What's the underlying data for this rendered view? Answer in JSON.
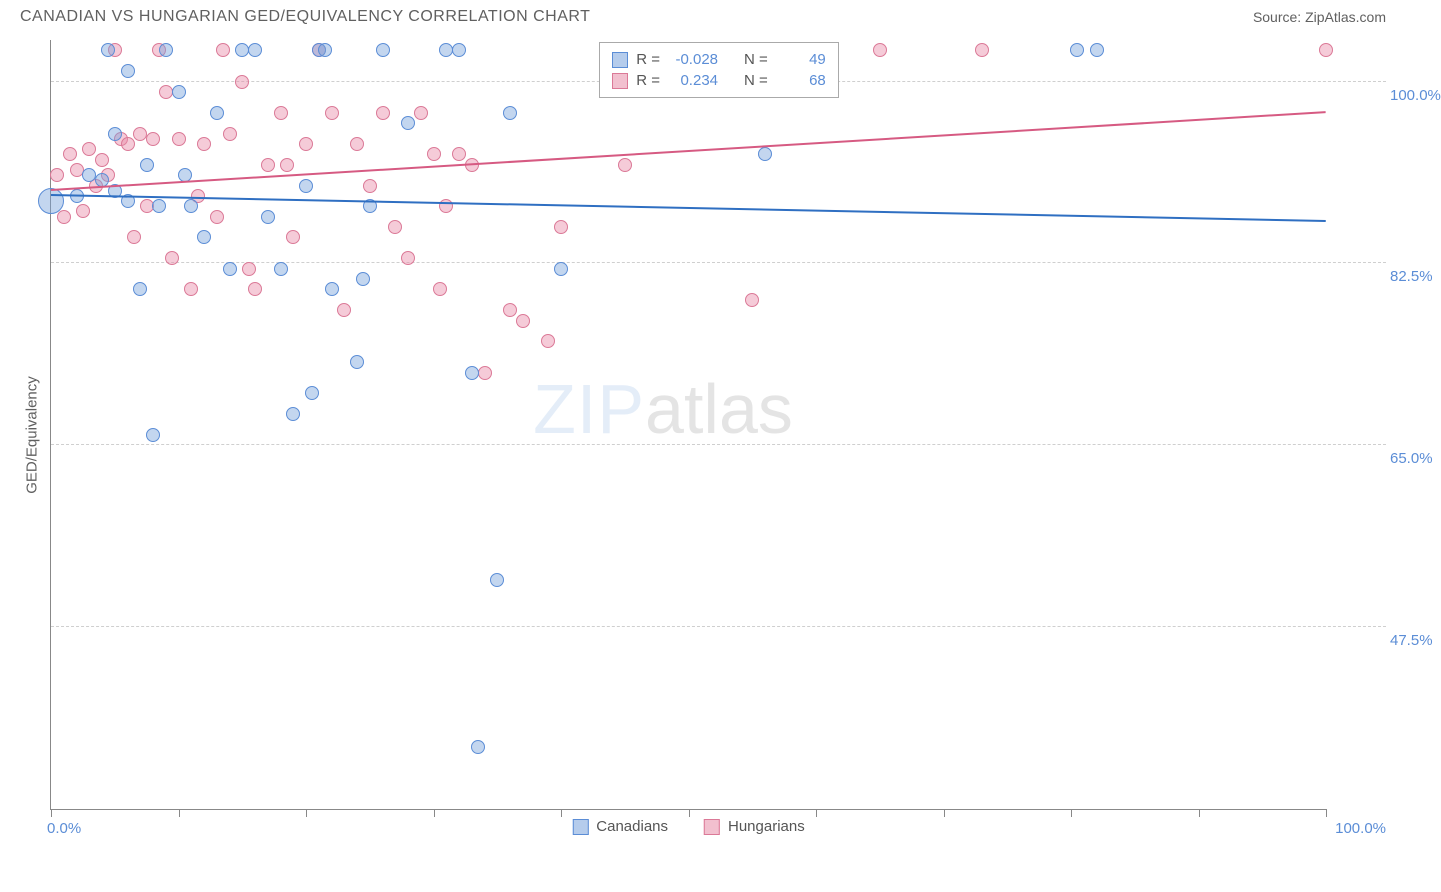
{
  "header": {
    "title": "CANADIAN VS HUNGARIAN GED/EQUIVALENCY CORRELATION CHART",
    "source": "Source: ZipAtlas.com"
  },
  "axes": {
    "y_label": "GED/Equivalency",
    "x_min": 0,
    "x_max": 100,
    "y_min": 30,
    "y_max": 104,
    "x_min_label": "0.0%",
    "x_max_label": "100.0%",
    "y_ticks": [
      {
        "value": 47.5,
        "label": "47.5%"
      },
      {
        "value": 65.0,
        "label": "65.0%"
      },
      {
        "value": 82.5,
        "label": "82.5%"
      },
      {
        "value": 100.0,
        "label": "100.0%"
      }
    ],
    "x_tick_positions": [
      0,
      10,
      20,
      30,
      40,
      50,
      60,
      70,
      80,
      90,
      100
    ],
    "grid_color": "#cfcfcf",
    "tick_label_color": "#5b8dd6",
    "axis_label_color": "#606060"
  },
  "series": {
    "canadians": {
      "label": "Canadians",
      "color_fill": "rgba(121,163,220,0.45)",
      "color_stroke": "#5b8dd6",
      "R": "-0.028",
      "N": "49",
      "regression": {
        "x1": 0,
        "y1": 89.0,
        "x2": 100,
        "y2": 86.5,
        "color": "#2f6fc2",
        "width": 2
      },
      "marker_size": 14,
      "points": [
        {
          "x": 0.0,
          "y": 88.5,
          "size": 26
        },
        {
          "x": 2.0,
          "y": 89.0
        },
        {
          "x": 3.0,
          "y": 91.0
        },
        {
          "x": 4.0,
          "y": 90.5
        },
        {
          "x": 4.5,
          "y": 103.0
        },
        {
          "x": 5.0,
          "y": 89.5
        },
        {
          "x": 5.0,
          "y": 95.0
        },
        {
          "x": 6.0,
          "y": 88.5
        },
        {
          "x": 6.0,
          "y": 101.0
        },
        {
          "x": 7.0,
          "y": 80.0
        },
        {
          "x": 7.5,
          "y": 92.0
        },
        {
          "x": 8.0,
          "y": 66.0
        },
        {
          "x": 8.5,
          "y": 88.0
        },
        {
          "x": 9.0,
          "y": 103.0
        },
        {
          "x": 10.0,
          "y": 99.0
        },
        {
          "x": 10.5,
          "y": 91.0
        },
        {
          "x": 11.0,
          "y": 88.0
        },
        {
          "x": 12.0,
          "y": 85.0
        },
        {
          "x": 13.0,
          "y": 97.0
        },
        {
          "x": 14.0,
          "y": 82.0
        },
        {
          "x": 15.0,
          "y": 103.0
        },
        {
          "x": 16.0,
          "y": 103.0
        },
        {
          "x": 17.0,
          "y": 87.0
        },
        {
          "x": 18.0,
          "y": 82.0
        },
        {
          "x": 19.0,
          "y": 68.0
        },
        {
          "x": 20.0,
          "y": 90.0
        },
        {
          "x": 20.5,
          "y": 70.0
        },
        {
          "x": 21.0,
          "y": 103.0
        },
        {
          "x": 21.5,
          "y": 103.0
        },
        {
          "x": 22.0,
          "y": 80.0
        },
        {
          "x": 24.0,
          "y": 73.0
        },
        {
          "x": 24.5,
          "y": 81.0
        },
        {
          "x": 25.0,
          "y": 88.0
        },
        {
          "x": 26.0,
          "y": 103.0
        },
        {
          "x": 28.0,
          "y": 96.0
        },
        {
          "x": 31.0,
          "y": 103.0
        },
        {
          "x": 32.0,
          "y": 103.0
        },
        {
          "x": 33.0,
          "y": 72.0
        },
        {
          "x": 33.5,
          "y": 36.0
        },
        {
          "x": 35.0,
          "y": 52.0
        },
        {
          "x": 36.0,
          "y": 97.0
        },
        {
          "x": 40.0,
          "y": 82.0
        },
        {
          "x": 56.0,
          "y": 93.0
        },
        {
          "x": 80.5,
          "y": 103.0
        },
        {
          "x": 82.0,
          "y": 103.0
        }
      ]
    },
    "hungarians": {
      "label": "Hungarians",
      "color_fill": "rgba(232,140,168,0.45)",
      "color_stroke": "#db7997",
      "R": "0.234",
      "N": "68",
      "regression": {
        "x1": 0,
        "y1": 89.5,
        "x2": 100,
        "y2": 97.0,
        "color": "#d65a82",
        "width": 2
      },
      "marker_size": 14,
      "points": [
        {
          "x": 0.5,
          "y": 91.0
        },
        {
          "x": 1.0,
          "y": 87.0
        },
        {
          "x": 1.5,
          "y": 93.0
        },
        {
          "x": 2.0,
          "y": 91.5
        },
        {
          "x": 2.5,
          "y": 87.5
        },
        {
          "x": 3.0,
          "y": 93.5
        },
        {
          "x": 3.5,
          "y": 90.0
        },
        {
          "x": 4.0,
          "y": 92.5
        },
        {
          "x": 4.5,
          "y": 91.0
        },
        {
          "x": 5.0,
          "y": 103.0
        },
        {
          "x": 5.5,
          "y": 94.5
        },
        {
          "x": 6.0,
          "y": 94.0
        },
        {
          "x": 6.5,
          "y": 85.0
        },
        {
          "x": 7.0,
          "y": 95.0
        },
        {
          "x": 7.5,
          "y": 88.0
        },
        {
          "x": 8.0,
          "y": 94.5
        },
        {
          "x": 8.5,
          "y": 103.0
        },
        {
          "x": 9.0,
          "y": 99.0
        },
        {
          "x": 9.5,
          "y": 83.0
        },
        {
          "x": 10.0,
          "y": 94.5
        },
        {
          "x": 11.0,
          "y": 80.0
        },
        {
          "x": 11.5,
          "y": 89.0
        },
        {
          "x": 12.0,
          "y": 94.0
        },
        {
          "x": 13.0,
          "y": 87.0
        },
        {
          "x": 13.5,
          "y": 103.0
        },
        {
          "x": 14.0,
          "y": 95.0
        },
        {
          "x": 15.0,
          "y": 100.0
        },
        {
          "x": 15.5,
          "y": 82.0
        },
        {
          "x": 16.0,
          "y": 80.0
        },
        {
          "x": 17.0,
          "y": 92.0
        },
        {
          "x": 18.0,
          "y": 97.0
        },
        {
          "x": 18.5,
          "y": 92.0
        },
        {
          "x": 19.0,
          "y": 85.0
        },
        {
          "x": 20.0,
          "y": 94.0
        },
        {
          "x": 21.0,
          "y": 103.0
        },
        {
          "x": 22.0,
          "y": 97.0
        },
        {
          "x": 23.0,
          "y": 78.0
        },
        {
          "x": 24.0,
          "y": 94.0
        },
        {
          "x": 25.0,
          "y": 90.0
        },
        {
          "x": 26.0,
          "y": 97.0
        },
        {
          "x": 27.0,
          "y": 86.0
        },
        {
          "x": 28.0,
          "y": 83.0
        },
        {
          "x": 29.0,
          "y": 97.0
        },
        {
          "x": 30.0,
          "y": 93.0
        },
        {
          "x": 30.5,
          "y": 80.0
        },
        {
          "x": 31.0,
          "y": 88.0
        },
        {
          "x": 32.0,
          "y": 93.0
        },
        {
          "x": 33.0,
          "y": 92.0
        },
        {
          "x": 34.0,
          "y": 72.0
        },
        {
          "x": 36.0,
          "y": 78.0
        },
        {
          "x": 37.0,
          "y": 77.0
        },
        {
          "x": 39.0,
          "y": 75.0
        },
        {
          "x": 40.0,
          "y": 86.0
        },
        {
          "x": 45.0,
          "y": 92.0
        },
        {
          "x": 55.0,
          "y": 79.0
        },
        {
          "x": 65.0,
          "y": 103.0
        },
        {
          "x": 73.0,
          "y": 103.0
        },
        {
          "x": 100.0,
          "y": 103.0
        }
      ]
    }
  },
  "top_legend": {
    "r_label": "R =",
    "n_label": "N ="
  },
  "watermark": {
    "part1": "ZIP",
    "part2": "atlas"
  },
  "background_color": "#ffffff"
}
